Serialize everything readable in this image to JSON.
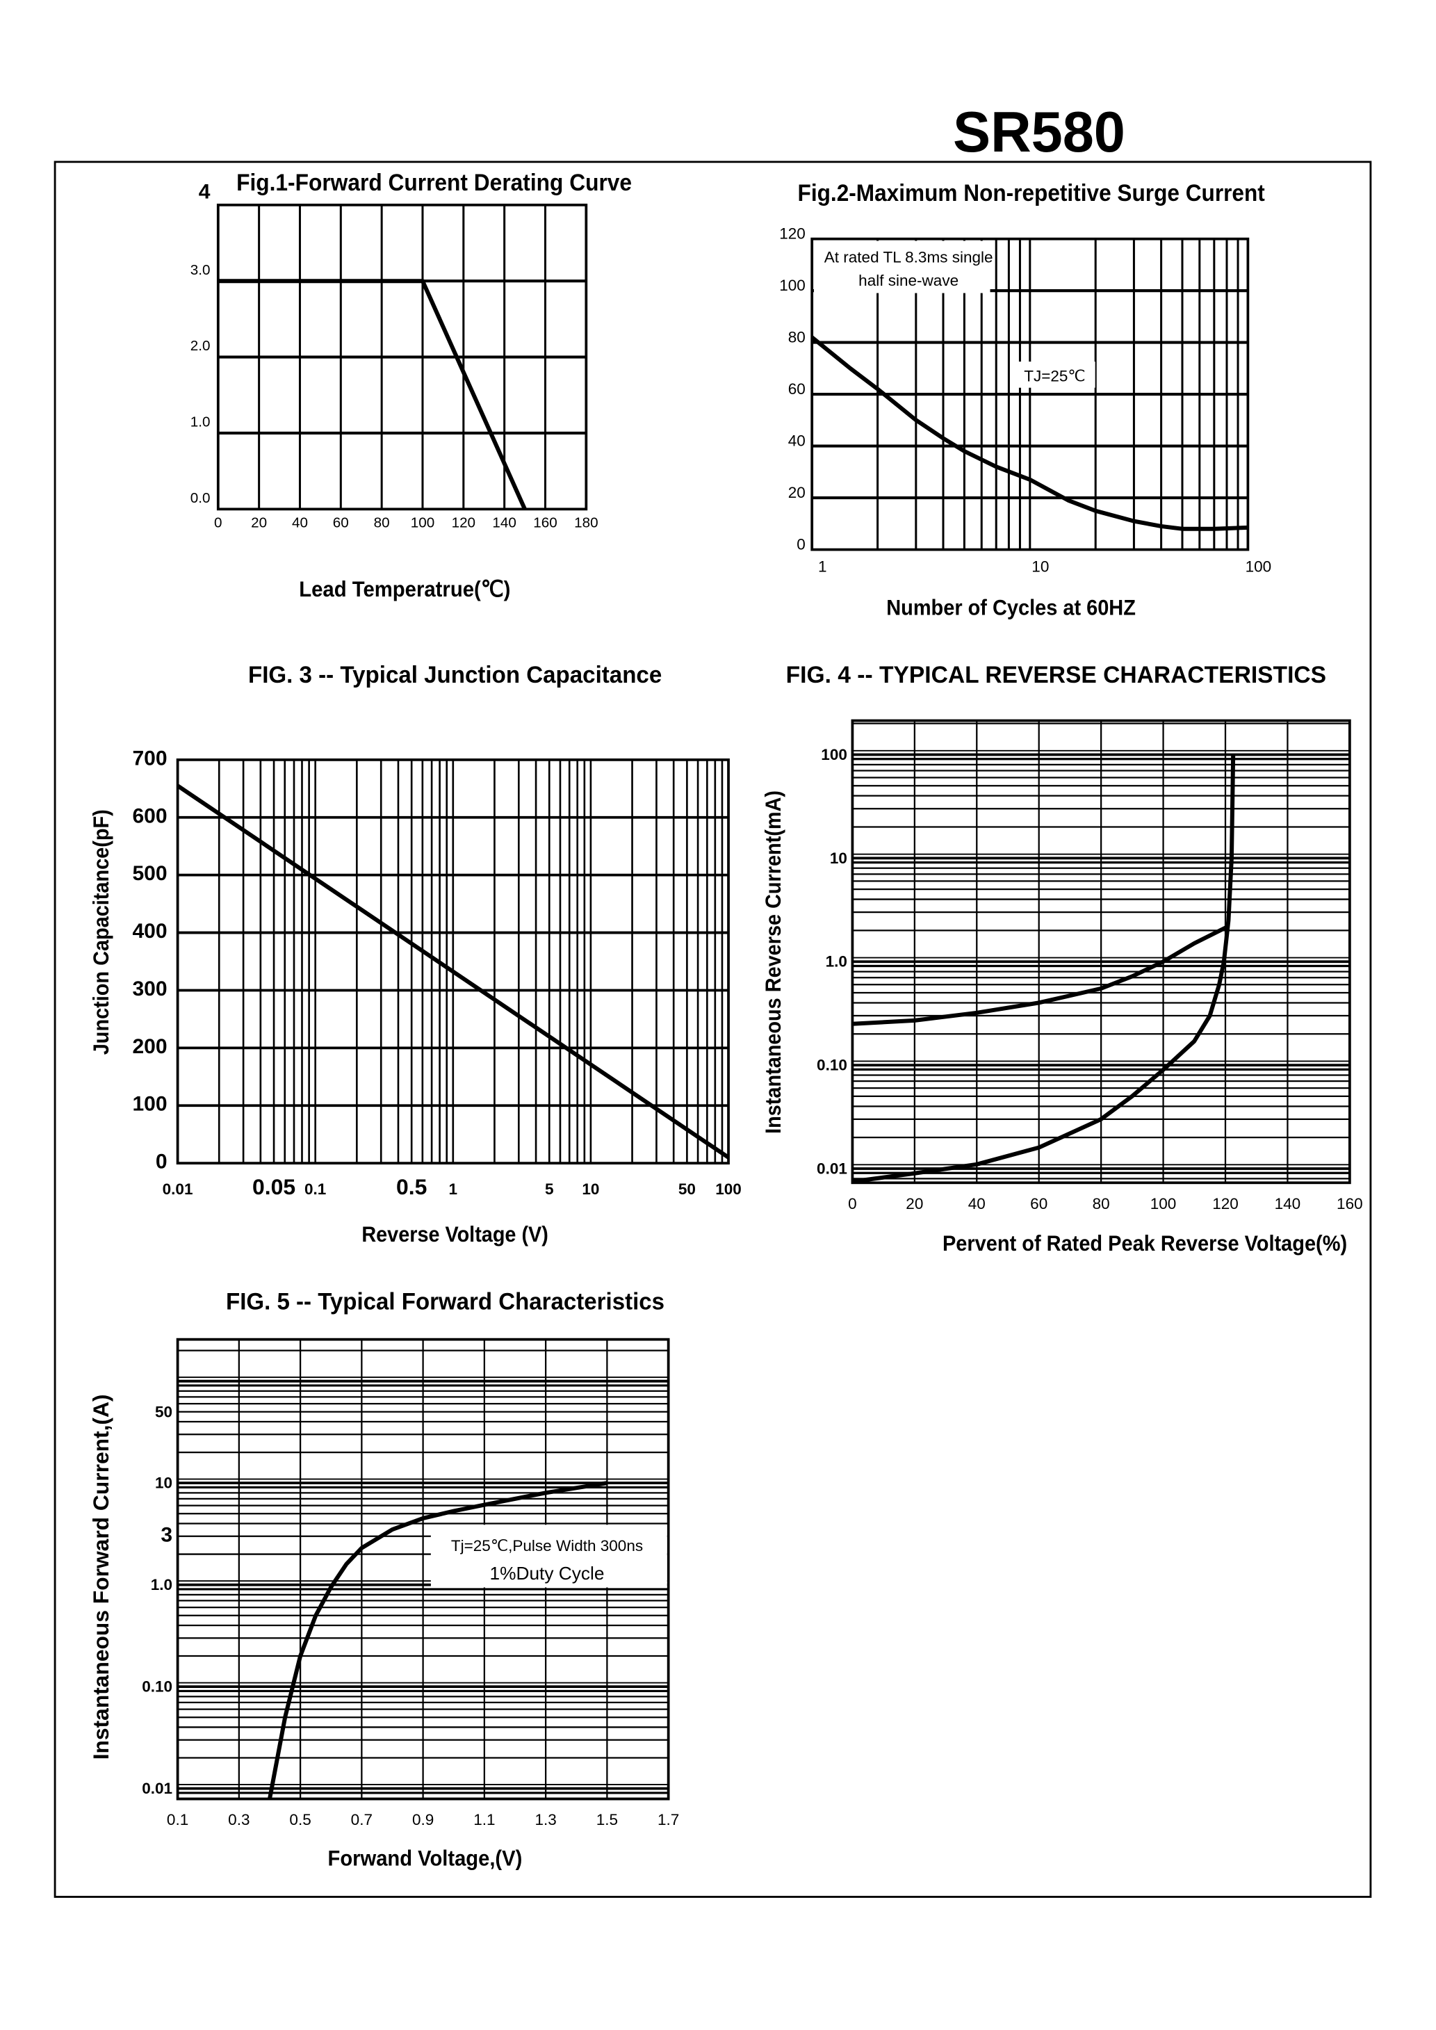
{
  "header": {
    "part_number": "SR580"
  },
  "colors": {
    "ink": "#000000",
    "background": "#ffffff"
  },
  "chart_data": [
    {
      "type": "line",
      "title": "Fig.1-Forward Current Derating Curve",
      "xlabel": "Lead Temperatrue(℃)",
      "ylabel": "",
      "x_scale": "linear",
      "y_scale": "linear",
      "xlim": [
        0,
        180
      ],
      "ylim": [
        0,
        4
      ],
      "grid": true,
      "x_tick_values": [
        0,
        20,
        40,
        60,
        80,
        100,
        120,
        140,
        160,
        180
      ],
      "x_tick_labels": [
        "0",
        "20",
        "40",
        "60",
        "80",
        "100",
        "120",
        "140",
        "160",
        "180"
      ],
      "y_tick_values": [
        4,
        3,
        2,
        1,
        0
      ],
      "y_tick_labels": [
        "4",
        "3.0",
        "2.0",
        "1.0",
        "0.0"
      ],
      "annotations": [],
      "series": [
        {
          "points": [
            [
              0,
              3
            ],
            [
              100,
              3
            ],
            [
              150,
              0
            ]
          ]
        }
      ]
    },
    {
      "type": "line",
      "title": "Fig.2-Maximum Non-repetitive Surge Current",
      "xlabel": "Number of Cycles at 60HZ",
      "ylabel": "",
      "x_scale": "log",
      "y_scale": "linear",
      "xlim": [
        1,
        100
      ],
      "ylim": [
        0,
        120
      ],
      "grid": true,
      "x_tick_values": [
        1,
        10,
        100
      ],
      "x_tick_labels": [
        "1",
        "10",
        "100"
      ],
      "y_tick_values": [
        120,
        100,
        80,
        60,
        40,
        20,
        0
      ],
      "y_tick_labels": [
        "120",
        "100",
        "80",
        "60",
        "40",
        "20",
        "0"
      ],
      "annotations": [
        "At rated TL 8.3ms single",
        "half sine-wave",
        "TJ=25℃"
      ],
      "series": [
        {
          "points": [
            [
              1,
              82
            ],
            [
              1.5,
              70
            ],
            [
              2,
              62
            ],
            [
              3,
              50
            ],
            [
              4,
              43
            ],
            [
              5,
              38
            ],
            [
              7,
              32
            ],
            [
              10,
              27
            ],
            [
              15,
              19
            ],
            [
              20,
              15
            ],
            [
              30,
              11
            ],
            [
              40,
              9
            ],
            [
              50,
              8
            ],
            [
              70,
              8
            ],
            [
              100,
              8.5
            ]
          ]
        }
      ]
    },
    {
      "type": "line",
      "title": "FIG.  3 --   Typical Junction Capacitance",
      "xlabel": "Reverse Voltage (V)",
      "ylabel": "Junction Capacitance(pF)",
      "x_scale": "log",
      "y_scale": "linear",
      "xlim": [
        0.01,
        100
      ],
      "ylim": [
        0,
        700
      ],
      "grid": true,
      "x_tick_values": [
        0.01,
        0.05,
        0.1,
        0.5,
        1,
        5,
        10,
        50,
        100
      ],
      "x_tick_labels": [
        "0.01",
        "0.05",
        "0.1",
        "0.5",
        "1",
        "5",
        "10",
        "50",
        "100"
      ],
      "y_tick_values": [
        700,
        600,
        500,
        400,
        300,
        200,
        100,
        0
      ],
      "y_tick_labels": [
        "700",
        "600",
        "500",
        "400",
        "300",
        "200",
        "100",
        "0"
      ],
      "annotations": [],
      "series": [
        {
          "points": [
            [
              0.01,
              655
            ],
            [
              100,
              10
            ]
          ]
        }
      ]
    },
    {
      "type": "line",
      "title": "FIG.  4   --  TYPICAL REVERSE  CHARACTERISTICS",
      "xlabel": "Pervent of Rated Peak Reverse Voltage(%)",
      "ylabel": "Instantaneous Reverse Current(mA)",
      "x_scale": "linear",
      "y_scale": "log",
      "xlim": [
        0,
        160
      ],
      "ylim": [
        0.0073,
        213
      ],
      "grid": true,
      "x_tick_values": [
        0,
        20,
        40,
        60,
        80,
        100,
        120,
        140,
        160
      ],
      "x_tick_labels": [
        "0",
        "20",
        "40",
        "60",
        "80",
        "100",
        "120",
        "140",
        "160"
      ],
      "y_tick_values": [
        100,
        10,
        1,
        0.1,
        0.01
      ],
      "y_tick_labels": [
        "100",
        "10",
        "1.0",
        "0.10",
        "0.01"
      ],
      "annotations": [],
      "series": [
        {
          "points": [
            [
              0,
              0.25
            ],
            [
              20,
              0.27
            ],
            [
              40,
              0.32
            ],
            [
              60,
              0.4
            ],
            [
              80,
              0.55
            ],
            [
              90,
              0.72
            ],
            [
              100,
              1.0
            ],
            [
              110,
              1.5
            ],
            [
              121,
              2.2
            ]
          ]
        },
        {
          "points": [
            [
              0,
              0.0075
            ],
            [
              20,
              0.009
            ],
            [
              40,
              0.011
            ],
            [
              60,
              0.016
            ],
            [
              80,
              0.03
            ],
            [
              90,
              0.05
            ],
            [
              100,
              0.09
            ],
            [
              110,
              0.17
            ],
            [
              115,
              0.3
            ],
            [
              118,
              0.6
            ],
            [
              119.5,
              1.0
            ],
            [
              121,
              2.5
            ],
            [
              122,
              10
            ],
            [
              122.5,
              100
            ]
          ]
        }
      ]
    },
    {
      "type": "line",
      "title": "FIG.  5 --   Typical Forward Characteristics",
      "xlabel": "Forwand Voltage,(V)",
      "ylabel": "Instantaneous Forward Current,(A)",
      "x_scale": "linear",
      "y_scale": "log",
      "xlim": [
        0.1,
        1.7
      ],
      "ylim": [
        0.0079,
        257
      ],
      "grid": true,
      "x_tick_values": [
        0.1,
        0.3,
        0.5,
        0.7,
        0.9,
        1.1,
        1.3,
        1.5,
        1.7
      ],
      "x_tick_labels": [
        "0.1",
        "0.3",
        "0.5",
        "0.7",
        "0.9",
        "1.1",
        "1.3",
        "1.5",
        "1.7"
      ],
      "y_tick_values": [
        50,
        10,
        3,
        1,
        0.1,
        0.01
      ],
      "y_tick_labels": [
        "50",
        "10",
        "3",
        "1.0",
        "0.10",
        "0.01"
      ],
      "annotations": [
        "Tj=25℃,Pulse Width 300ns",
        "1%Duty  Cycle"
      ],
      "series": [
        {
          "points": [
            [
              0.4,
              0.0079
            ],
            [
              0.45,
              0.05
            ],
            [
              0.5,
              0.2
            ],
            [
              0.55,
              0.5
            ],
            [
              0.6,
              0.95
            ],
            [
              0.65,
              1.6
            ],
            [
              0.7,
              2.3
            ],
            [
              0.8,
              3.5
            ],
            [
              0.9,
              4.5
            ],
            [
              1.0,
              5.3
            ],
            [
              1.1,
              6.1
            ],
            [
              1.3,
              8
            ],
            [
              1.5,
              10
            ]
          ]
        }
      ]
    }
  ]
}
